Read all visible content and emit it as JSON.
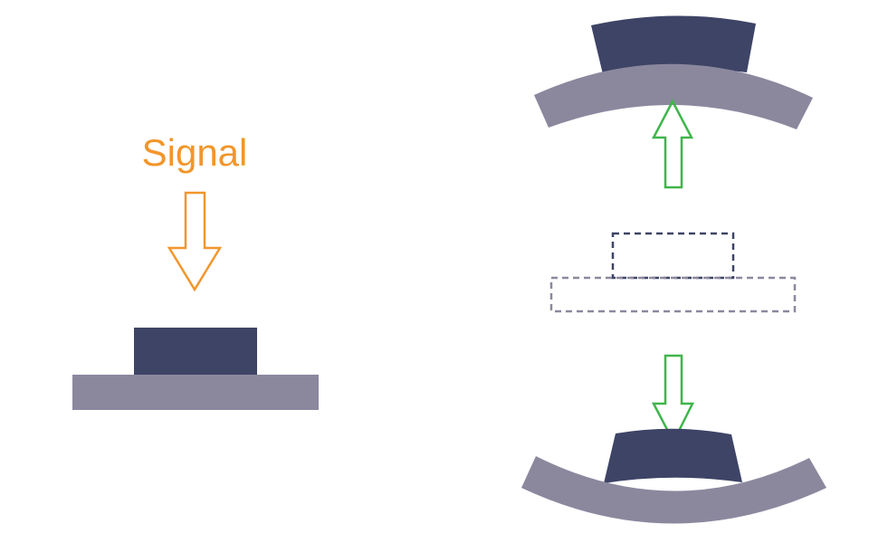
{
  "signal": {
    "label": "Signal"
  },
  "colors": {
    "actuator": "#3e4466",
    "substrate": "#8b889e",
    "signal": "#f2962b",
    "motion_arrow": "#3fb54b",
    "reference_outline_actuator": "#3e4466",
    "reference_outline_substrate": "#8b889e",
    "background": "#ffffff"
  },
  "icons": {
    "signal_arrow": "down-arrow-outline-icon",
    "bend_up_arrow": "up-arrow-outline-icon",
    "bend_down_arrow": "down-arrow-outline-icon"
  }
}
